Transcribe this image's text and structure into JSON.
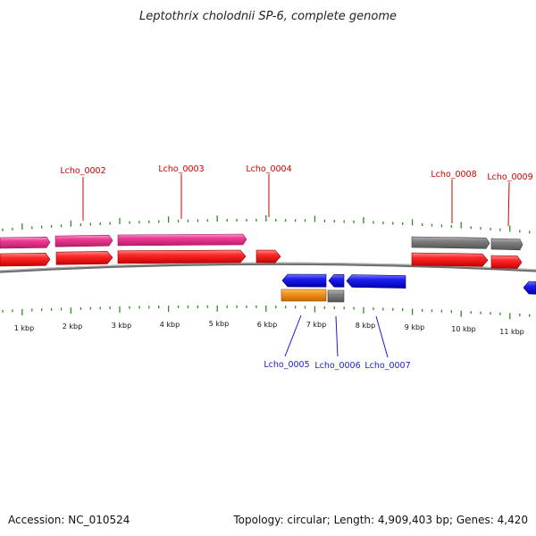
{
  "title": "Leptothrix cholodnii SP-6, complete genome",
  "footer": {
    "accession": "Accession: NC_010524",
    "summary": "Topology: circular; Length: 4,909,403 bp; Genes: 4,420"
  },
  "kbp_labels": [
    "1 kbp",
    "2 kbp",
    "3 kbp",
    "4 kbp",
    "5 kbp",
    "6 kbp",
    "7 kbp",
    "8 kbp",
    "9 kbp",
    "10 kbp",
    "11 kbp"
  ],
  "gene_labels": {
    "top": [
      "Lcho_0002",
      "Lcho_0003",
      "Lcho_0004",
      "Lcho_0008",
      "Lcho_0009"
    ],
    "bottom": [
      "Lcho_0005",
      "Lcho_0006",
      "Lcho_0007"
    ]
  },
  "colors": {
    "forward_gene": "#e8202a",
    "forward_cds": "#e0408f",
    "forward_grey": "#787878",
    "reverse_gene": "#1a1ae6",
    "reverse_cds": "#f0901c",
    "reverse_grey": "#787878",
    "tick": "#2e8b22",
    "label_top": "#cc0000",
    "label_bottom": "#1a1acc",
    "backbone": "#707070"
  }
}
